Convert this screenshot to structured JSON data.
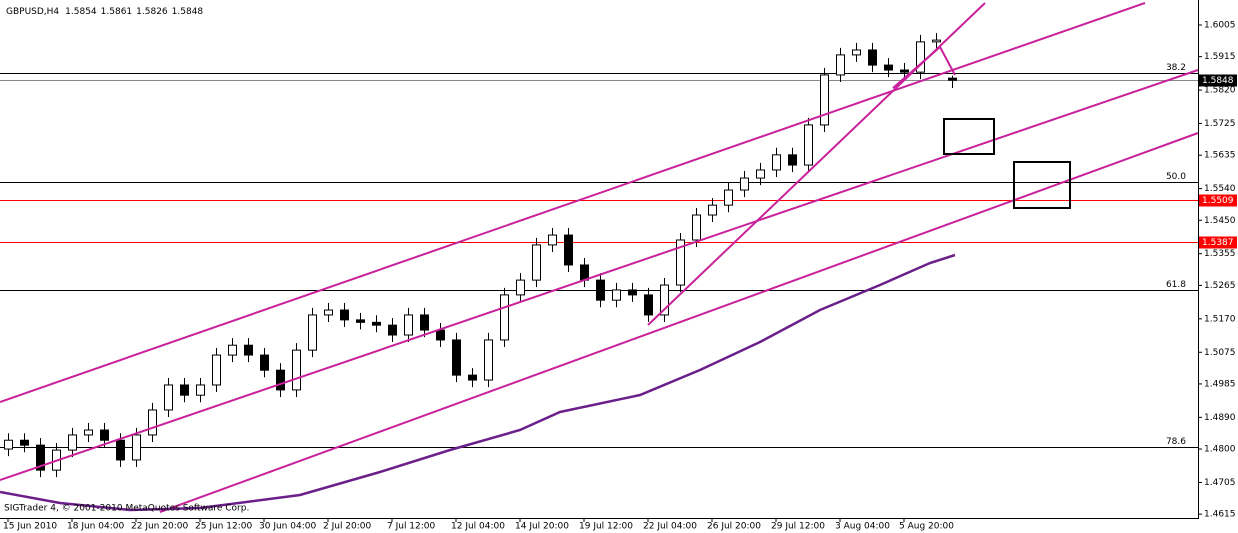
{
  "chart_data": {
    "type": "candlestick",
    "title": "GBPUSD,H4",
    "footer": "SIGTrader 4, © 2001-2010 MetaQuotes Software Corp.",
    "categories": [
      "15 Jun 2010",
      null,
      null,
      null,
      "18 Jun 04:00",
      null,
      null,
      null,
      "22 Jun 20:00",
      null,
      null,
      null,
      "25 Jun 12:00",
      null,
      null,
      null,
      "30 Jun 04:00",
      null,
      null,
      null,
      "2 Jul 20:00",
      null,
      null,
      null,
      "7 Jul 12:00",
      null,
      null,
      null,
      "12 Jul 04:00",
      null,
      null,
      null,
      "14 Jul 20:00",
      null,
      null,
      null,
      "19 Jul 12:00",
      null,
      null,
      null,
      "22 Jul 04:00",
      null,
      null,
      null,
      "26 Jul 20:00",
      null,
      null,
      null,
      "29 Jul 12:00",
      null,
      null,
      null,
      "3 Aug 04:00",
      null,
      null,
      null,
      "5 Aug 20:00",
      null,
      null,
      null
    ],
    "open": [
      1.48,
      1.4825,
      1.4811,
      1.474,
      1.4797,
      1.484,
      1.4854,
      1.4825,
      1.4769,
      1.484,
      1.4911,
      1.4982,
      1.4953,
      1.4982,
      1.5067,
      1.5095,
      1.5067,
      1.5024,
      1.4968,
      1.5081,
      1.5181,
      1.5195,
      1.5167,
      1.516,
      1.5152,
      1.5124,
      1.5181,
      1.5138,
      1.511,
      1.501,
      1.4996,
      1.511,
      1.5238,
      1.528,
      1.538,
      1.5408,
      1.5323,
      1.528,
      1.5223,
      1.5252,
      1.5238,
      1.5181,
      1.5266,
      1.5394,
      1.5465,
      1.5493,
      1.5536,
      1.557,
      1.5593,
      1.5636,
      1.5607,
      1.5721,
      1.5863,
      1.592,
      1.5934,
      1.5891,
      1.5877,
      1.5871,
      1.5957,
      1.5854
    ],
    "high": [
      1.4845,
      1.4845,
      1.4831,
      1.4817,
      1.486,
      1.4874,
      1.4874,
      1.4845,
      1.486,
      1.4931,
      1.5002,
      1.5002,
      1.5002,
      1.5087,
      1.5115,
      1.5115,
      1.5087,
      1.5044,
      1.5101,
      1.5201,
      1.5215,
      1.5215,
      1.5187,
      1.518,
      1.5172,
      1.5201,
      1.5201,
      1.5158,
      1.513,
      1.503,
      1.513,
      1.5258,
      1.53,
      1.54,
      1.5428,
      1.5428,
      1.5343,
      1.53,
      1.5272,
      1.5272,
      1.5258,
      1.5286,
      1.5414,
      1.5485,
      1.5513,
      1.5556,
      1.559,
      1.5613,
      1.5656,
      1.5656,
      1.5741,
      1.5883,
      1.594,
      1.5954,
      1.5954,
      1.5911,
      1.5897,
      1.5977,
      1.5982,
      1.5861
    ],
    "low": [
      1.478,
      1.4791,
      1.472,
      1.472,
      1.4777,
      1.482,
      1.4805,
      1.4749,
      1.4749,
      1.482,
      1.4891,
      1.4933,
      1.4933,
      1.4962,
      1.5047,
      1.5047,
      1.5004,
      1.4948,
      1.4948,
      1.5061,
      1.5161,
      1.5147,
      1.514,
      1.5132,
      1.5104,
      1.5104,
      1.5118,
      1.509,
      1.499,
      1.4976,
      1.4976,
      1.509,
      1.5218,
      1.526,
      1.536,
      1.5303,
      1.526,
      1.5203,
      1.5203,
      1.5218,
      1.5161,
      1.5161,
      1.5246,
      1.5374,
      1.5445,
      1.5473,
      1.5516,
      1.555,
      1.5573,
      1.5587,
      1.5587,
      1.5701,
      1.5843,
      1.59,
      1.5871,
      1.5857,
      1.5851,
      1.5851,
      1.5937,
      1.5826
    ],
    "close": [
      1.4825,
      1.4811,
      1.474,
      1.4797,
      1.484,
      1.4854,
      1.4825,
      1.4769,
      1.484,
      1.4911,
      1.4982,
      1.4953,
      1.4982,
      1.5067,
      1.5095,
      1.5067,
      1.5024,
      1.4968,
      1.5081,
      1.5181,
      1.5195,
      1.5167,
      1.516,
      1.5152,
      1.5124,
      1.5181,
      1.5138,
      1.511,
      1.501,
      1.4996,
      1.511,
      1.5238,
      1.528,
      1.538,
      1.5408,
      1.5323,
      1.528,
      1.5223,
      1.5252,
      1.5238,
      1.5181,
      1.5266,
      1.5394,
      1.5465,
      1.5493,
      1.5536,
      1.557,
      1.5593,
      1.5636,
      1.5607,
      1.5721,
      1.5863,
      1.592,
      1.5934,
      1.5891,
      1.5877,
      1.5871,
      1.5957,
      1.5962,
      1.5848
    ],
    "up_color": "#ffffff",
    "down_color": "#000000",
    "ylim": [
      1.4604,
      1.6076
    ],
    "yticks": [
      1.6005,
      1.5915,
      {
        "value": 1.582,
        "label": "1.5820"
      },
      1.5725,
      1.5635,
      {
        "value": 1.554,
        "label": "1.5540"
      },
      {
        "value": 1.545,
        "label": "1.5450"
      },
      1.5355,
      1.5265,
      {
        "value": 1.517,
        "label": "1.5170"
      },
      1.5075,
      1.4985,
      {
        "value": 1.489,
        "label": "1.4890"
      },
      {
        "value": 1.48,
        "label": "1.4800"
      },
      1.4705,
      1.4615
    ],
    "grid": false,
    "levels": [
      {
        "label": "38.2",
        "value": 1.5869
      },
      {
        "label": "50.0",
        "value": 1.5559
      },
      {
        "label": "61.8",
        "value": 1.5252
      },
      {
        "label": "78.6",
        "value": 1.4806
      }
    ],
    "hlines": {
      "color": "#ff0000",
      "values": [
        1.5509,
        1.5387
      ]
    }
  }
}
